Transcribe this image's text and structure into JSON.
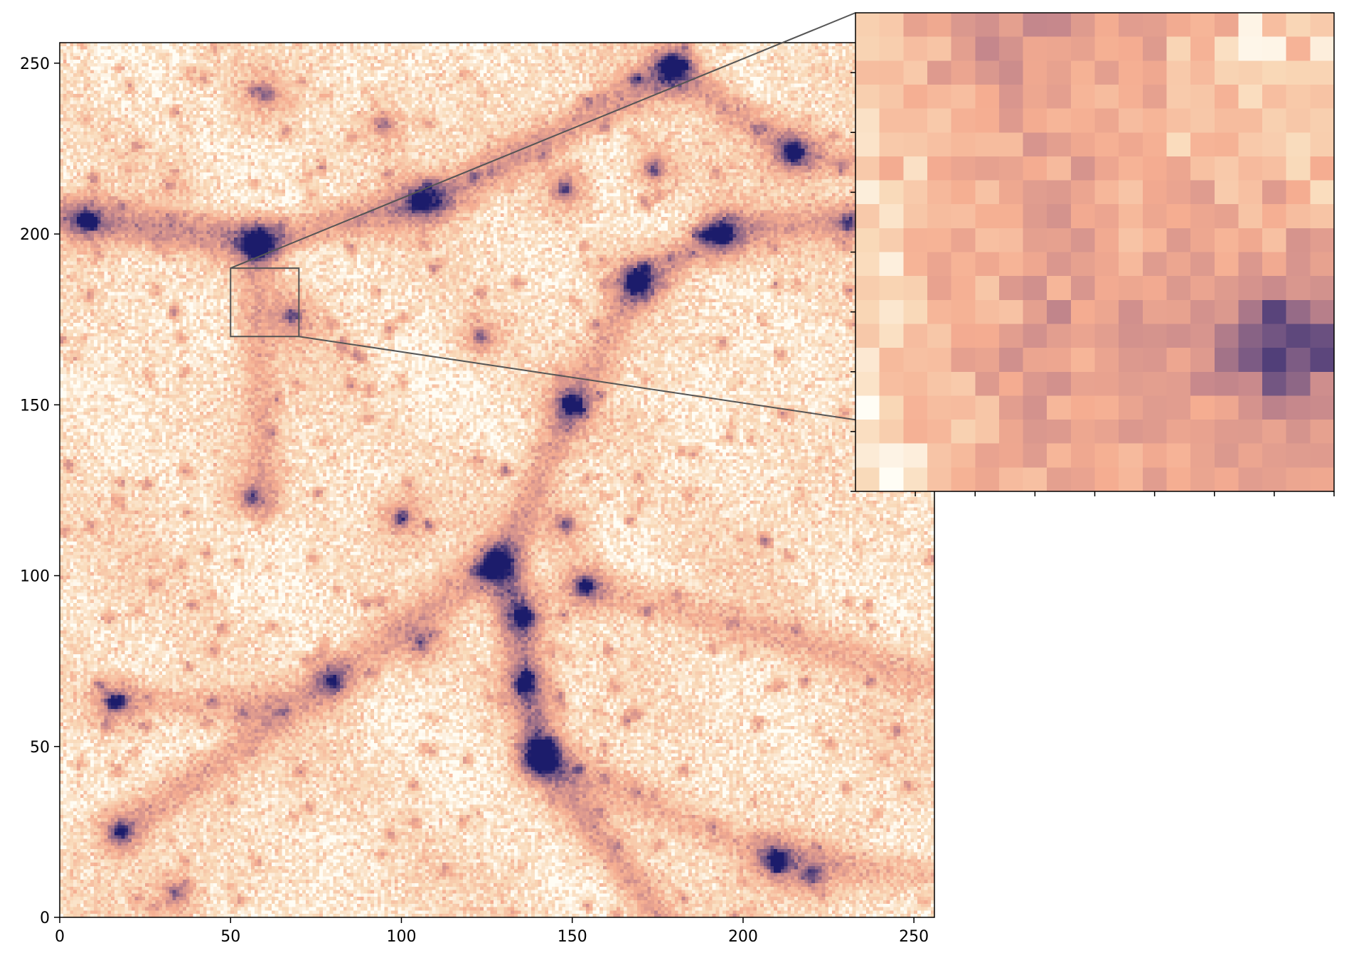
{
  "chart_data": [
    {
      "type": "heatmap",
      "title": "",
      "xlabel": "",
      "ylabel": "",
      "xlim": [
        0,
        256
      ],
      "ylim": [
        0,
        256
      ],
      "xticks": [
        0,
        50,
        100,
        150,
        200,
        250
      ],
      "yticks": [
        0,
        50,
        100,
        150,
        200,
        250
      ],
      "grid": false,
      "colormap": [
        "#fffdf5",
        "#f9d9b8",
        "#f5ad91",
        "#c98a8c",
        "#7b5b84",
        "#1c1c6b"
      ],
      "inset_region": {
        "x": [
          50,
          70
        ],
        "y": [
          170,
          190
        ]
      },
      "dense_clumps": [
        {
          "x": 179,
          "y": 249,
          "strength": 1.0
        },
        {
          "x": 8,
          "y": 204,
          "strength": 0.95
        },
        {
          "x": 57,
          "y": 197,
          "strength": 0.9
        },
        {
          "x": 105,
          "y": 210,
          "strength": 0.85
        },
        {
          "x": 148,
          "y": 213,
          "strength": 0.75
        },
        {
          "x": 169,
          "y": 186,
          "strength": 1.0
        },
        {
          "x": 194,
          "y": 200,
          "strength": 0.85
        },
        {
          "x": 174,
          "y": 219,
          "strength": 0.7
        },
        {
          "x": 215,
          "y": 224,
          "strength": 0.7
        },
        {
          "x": 231,
          "y": 203,
          "strength": 0.6
        },
        {
          "x": 126,
          "y": 102,
          "strength": 0.9
        },
        {
          "x": 136,
          "y": 88,
          "strength": 1.0
        },
        {
          "x": 154,
          "y": 97,
          "strength": 0.9
        },
        {
          "x": 136,
          "y": 68,
          "strength": 0.8
        },
        {
          "x": 141,
          "y": 47,
          "strength": 1.0
        },
        {
          "x": 100,
          "y": 117,
          "strength": 0.75
        },
        {
          "x": 148,
          "y": 115,
          "strength": 0.7
        },
        {
          "x": 16,
          "y": 63,
          "strength": 0.75
        },
        {
          "x": 18,
          "y": 25,
          "strength": 0.8
        },
        {
          "x": 210,
          "y": 17,
          "strength": 0.75
        },
        {
          "x": 220,
          "y": 12,
          "strength": 0.6
        },
        {
          "x": 34,
          "y": 7,
          "strength": 0.6
        },
        {
          "x": 56,
          "y": 123,
          "strength": 0.6
        },
        {
          "x": 123,
          "y": 170,
          "strength": 0.6
        },
        {
          "x": 150,
          "y": 150,
          "strength": 0.55
        },
        {
          "x": 68,
          "y": 176,
          "strength": 0.7
        },
        {
          "x": 60,
          "y": 241,
          "strength": 0.6
        },
        {
          "x": 95,
          "y": 232,
          "strength": 0.55
        },
        {
          "x": 106,
          "y": 80,
          "strength": 0.55
        },
        {
          "x": 80,
          "y": 69,
          "strength": 0.5
        }
      ],
      "filaments": [
        {
          "from": [
            0,
            205
          ],
          "to": [
            60,
            198
          ],
          "strength": 0.45
        },
        {
          "from": [
            60,
            198
          ],
          "to": [
            110,
            210
          ],
          "strength": 0.4
        },
        {
          "from": [
            110,
            210
          ],
          "to": [
            180,
            248
          ],
          "strength": 0.4
        },
        {
          "from": [
            180,
            248
          ],
          "to": [
            215,
            224
          ],
          "strength": 0.35
        },
        {
          "from": [
            215,
            224
          ],
          "to": [
            256,
            215
          ],
          "strength": 0.3
        },
        {
          "from": [
            169,
            186
          ],
          "to": [
            194,
            200
          ],
          "strength": 0.35
        },
        {
          "from": [
            194,
            200
          ],
          "to": [
            235,
            205
          ],
          "strength": 0.3
        },
        {
          "from": [
            169,
            186
          ],
          "to": [
            150,
            150
          ],
          "strength": 0.3
        },
        {
          "from": [
            150,
            150
          ],
          "to": [
            130,
            105
          ],
          "strength": 0.35
        },
        {
          "from": [
            130,
            105
          ],
          "to": [
            141,
            47
          ],
          "strength": 0.5
        },
        {
          "from": [
            141,
            47
          ],
          "to": [
            175,
            0
          ],
          "strength": 0.35
        },
        {
          "from": [
            126,
            102
          ],
          "to": [
            80,
            70
          ],
          "strength": 0.3
        },
        {
          "from": [
            80,
            70
          ],
          "to": [
            18,
            25
          ],
          "strength": 0.3
        },
        {
          "from": [
            154,
            97
          ],
          "to": [
            256,
            70
          ],
          "strength": 0.25
        },
        {
          "from": [
            141,
            47
          ],
          "to": [
            210,
            17
          ],
          "strength": 0.25
        },
        {
          "from": [
            210,
            17
          ],
          "to": [
            256,
            12
          ],
          "strength": 0.25
        },
        {
          "from": [
            57,
            197
          ],
          "to": [
            60,
            123
          ],
          "strength": 0.25
        },
        {
          "from": [
            16,
            63
          ],
          "to": [
            60,
            62
          ],
          "strength": 0.25
        }
      ]
    },
    {
      "type": "heatmap",
      "title": "",
      "role": "zoomed inset",
      "xlim": [
        50,
        70
      ],
      "ylim": [
        170,
        190
      ],
      "grid": false,
      "source_region": {
        "x": [
          50,
          70
        ],
        "y": [
          170,
          190
        ]
      }
    }
  ]
}
